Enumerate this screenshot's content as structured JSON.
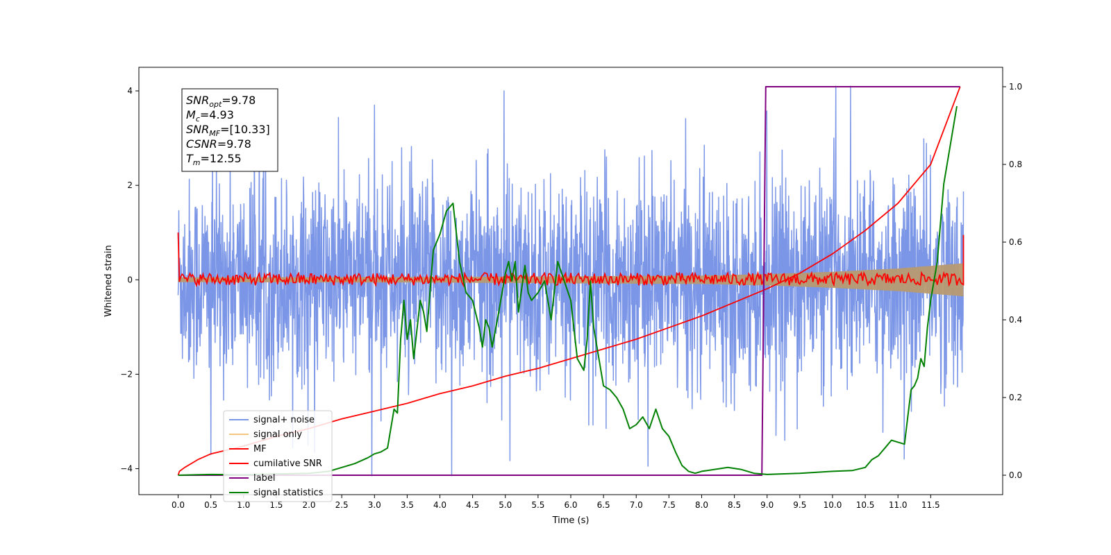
{
  "chart_data": {
    "type": "line",
    "xlabel": "Time (s)",
    "ylabel": "Whitened strain",
    "xlim": [
      -0.6,
      12.6
    ],
    "ylim": [
      -4.55,
      4.5
    ],
    "y2lim": [
      -0.05,
      1.05
    ],
    "xticks": [
      "0.0",
      "0.5",
      "1.0",
      "1.5",
      "2.0",
      "2.5",
      "3.0",
      "3.5",
      "4.0",
      "4.5",
      "5.0",
      "5.5",
      "6.0",
      "6.5",
      "7.0",
      "7.5",
      "8.0",
      "8.5",
      "9.0",
      "9.5",
      "10.0",
      "10.5",
      "11.0",
      "11.5"
    ],
    "yticks": [
      "4",
      "2",
      "0",
      "−2",
      "−4"
    ],
    "yticks_values": [
      4,
      2,
      0,
      -2,
      -4
    ],
    "y2ticks": [
      "1.0",
      "0.8",
      "0.6",
      "0.4",
      "0.2",
      "0.0"
    ],
    "y2ticks_values": [
      1.0,
      0.8,
      0.6,
      0.4,
      0.2,
      0.0
    ],
    "legend_position": "lower-left",
    "annotation": [
      {
        "main": "SNR",
        "sub": "opt",
        "rest": "=9.78"
      },
      {
        "main": "M",
        "sub": "c",
        "rest": "=4.93"
      },
      {
        "main": "SNR",
        "sub": "MF",
        "rest": "=[10.33]"
      },
      {
        "main": "CSNR",
        "sub": "",
        "rest": "=9.78"
      },
      {
        "main": "T",
        "sub": "m",
        "rest": "=12.55"
      }
    ],
    "series": [
      {
        "name": "signal+ noise",
        "color": "#7b96e6",
        "axis": "left",
        "description_range": [
          -4.15,
          4.1
        ],
        "spikes": [
          {
            "x": 4.18,
            "y": -4.15
          },
          {
            "x": 10.05,
            "y": 4.1
          },
          {
            "x": 4.98,
            "y": 4.0
          },
          {
            "x": 3.0,
            "y": 3.7
          },
          {
            "x": 0.5,
            "y": -3.7
          }
        ]
      },
      {
        "name": "signal only",
        "color": "#f5c77e",
        "axis": "left",
        "envelope": {
          "x": [
            0,
            4,
            8,
            9,
            10,
            11,
            12
          ],
          "amp": [
            0.05,
            0.06,
            0.09,
            0.12,
            0.17,
            0.24,
            0.35
          ]
        }
      },
      {
        "name": "MF",
        "color": "#ff0000",
        "axis": "left",
        "level": 0.0,
        "jitter": 0.12
      },
      {
        "name": "cumilative SNR",
        "color": "#ff0000",
        "axis": "right",
        "x": [
          0,
          0.02,
          0.1,
          0.3,
          0.5,
          1,
          1.5,
          2,
          2.5,
          3,
          3.5,
          4,
          4.5,
          5,
          5.5,
          6,
          6.5,
          7,
          7.5,
          8,
          8.5,
          9,
          9.5,
          10,
          10.5,
          11,
          11.5,
          11.95
        ],
        "y": [
          0,
          0.01,
          0.02,
          0.04,
          0.055,
          0.075,
          0.1,
          0.12,
          0.145,
          0.165,
          0.185,
          0.21,
          0.23,
          0.255,
          0.275,
          0.3,
          0.325,
          0.35,
          0.38,
          0.41,
          0.445,
          0.48,
          0.52,
          0.57,
          0.63,
          0.7,
          0.8,
          1.0
        ]
      },
      {
        "name": "label",
        "color": "#800080",
        "axis": "right",
        "x": [
          0,
          8.92,
          8.98,
          11.95
        ],
        "y": [
          0,
          0,
          1.0,
          1.0
        ]
      },
      {
        "name": "signal statistics",
        "color": "#008000",
        "axis": "right",
        "x": [
          0,
          0.5,
          1,
          1.5,
          2,
          2.3,
          2.5,
          2.7,
          2.9,
          3.0,
          3.1,
          3.2,
          3.3,
          3.35,
          3.4,
          3.45,
          3.5,
          3.55,
          3.6,
          3.7,
          3.75,
          3.8,
          3.9,
          4.0,
          4.1,
          4.2,
          4.3,
          4.4,
          4.5,
          4.6,
          4.65,
          4.7,
          4.75,
          4.8,
          4.9,
          5.0,
          5.05,
          5.1,
          5.15,
          5.2,
          5.3,
          5.35,
          5.4,
          5.5,
          5.6,
          5.7,
          5.8,
          5.9,
          6.0,
          6.1,
          6.2,
          6.25,
          6.3,
          6.35,
          6.4,
          6.5,
          6.6,
          6.7,
          6.8,
          6.9,
          7.0,
          7.1,
          7.2,
          7.3,
          7.4,
          7.5,
          7.6,
          7.7,
          7.8,
          7.9,
          8.0,
          8.2,
          8.4,
          8.6,
          8.8,
          9.0,
          9.5,
          10.0,
          10.3,
          10.5,
          10.6,
          10.7,
          10.8,
          10.85,
          10.9,
          11.0,
          11.1,
          11.15,
          11.2,
          11.25,
          11.3,
          11.35,
          11.4,
          11.45,
          11.5,
          11.6,
          11.7,
          11.8,
          11.9
        ],
        "y": [
          0,
          0.002,
          0.001,
          0.003,
          0.005,
          0.01,
          0.02,
          0.03,
          0.045,
          0.055,
          0.06,
          0.07,
          0.17,
          0.16,
          0.35,
          0.45,
          0.35,
          0.4,
          0.3,
          0.45,
          0.42,
          0.37,
          0.58,
          0.62,
          0.68,
          0.7,
          0.55,
          0.47,
          0.45,
          0.38,
          0.33,
          0.4,
          0.38,
          0.33,
          0.42,
          0.52,
          0.55,
          0.5,
          0.55,
          0.42,
          0.54,
          0.47,
          0.45,
          0.47,
          0.5,
          0.4,
          0.55,
          0.5,
          0.45,
          0.3,
          0.27,
          0.35,
          0.5,
          0.38,
          0.33,
          0.23,
          0.22,
          0.2,
          0.17,
          0.12,
          0.13,
          0.15,
          0.12,
          0.17,
          0.12,
          0.1,
          0.06,
          0.025,
          0.01,
          0.005,
          0.01,
          0.015,
          0.02,
          0.015,
          0.005,
          0.002,
          0.005,
          0.01,
          0.012,
          0.02,
          0.04,
          0.05,
          0.07,
          0.08,
          0.09,
          0.085,
          0.08,
          0.15,
          0.22,
          0.23,
          0.25,
          0.3,
          0.28,
          0.38,
          0.45,
          0.55,
          0.75,
          0.85,
          0.95
        ]
      }
    ]
  }
}
